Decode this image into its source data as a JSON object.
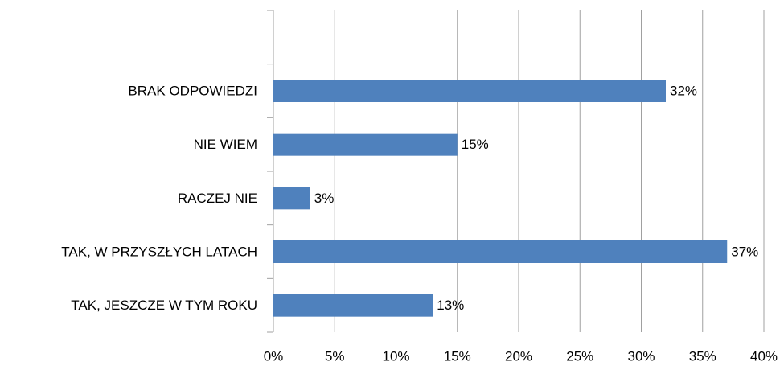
{
  "chart_data": {
    "type": "barh",
    "categories": [
      null,
      "BRAK ODPOWIEDZI",
      "NIE WIEM",
      "RACZEJ NIE",
      "TAK, W PRZYSZŁYCH LATACH",
      "TAK, JESZCZE W TYM ROKU"
    ],
    "values": [
      null,
      32,
      15,
      3,
      37,
      13
    ],
    "value_labels": [
      null,
      "32%",
      "15%",
      "3%",
      "37%",
      "13%"
    ],
    "color": "#4f81bd",
    "xlim": [
      0,
      40
    ],
    "xticks": [
      {
        "value": 0,
        "label": "0%"
      },
      {
        "value": 5,
        "label": "5%"
      },
      {
        "value": 10,
        "label": "10%"
      },
      {
        "value": 15,
        "label": "15%"
      },
      {
        "value": 20,
        "label": "20%"
      },
      {
        "value": 25,
        "label": "25%"
      },
      {
        "value": 30,
        "label": "30%"
      },
      {
        "value": 35,
        "label": "35%"
      },
      {
        "value": 40,
        "label": "40%"
      }
    ],
    "grid": true
  }
}
